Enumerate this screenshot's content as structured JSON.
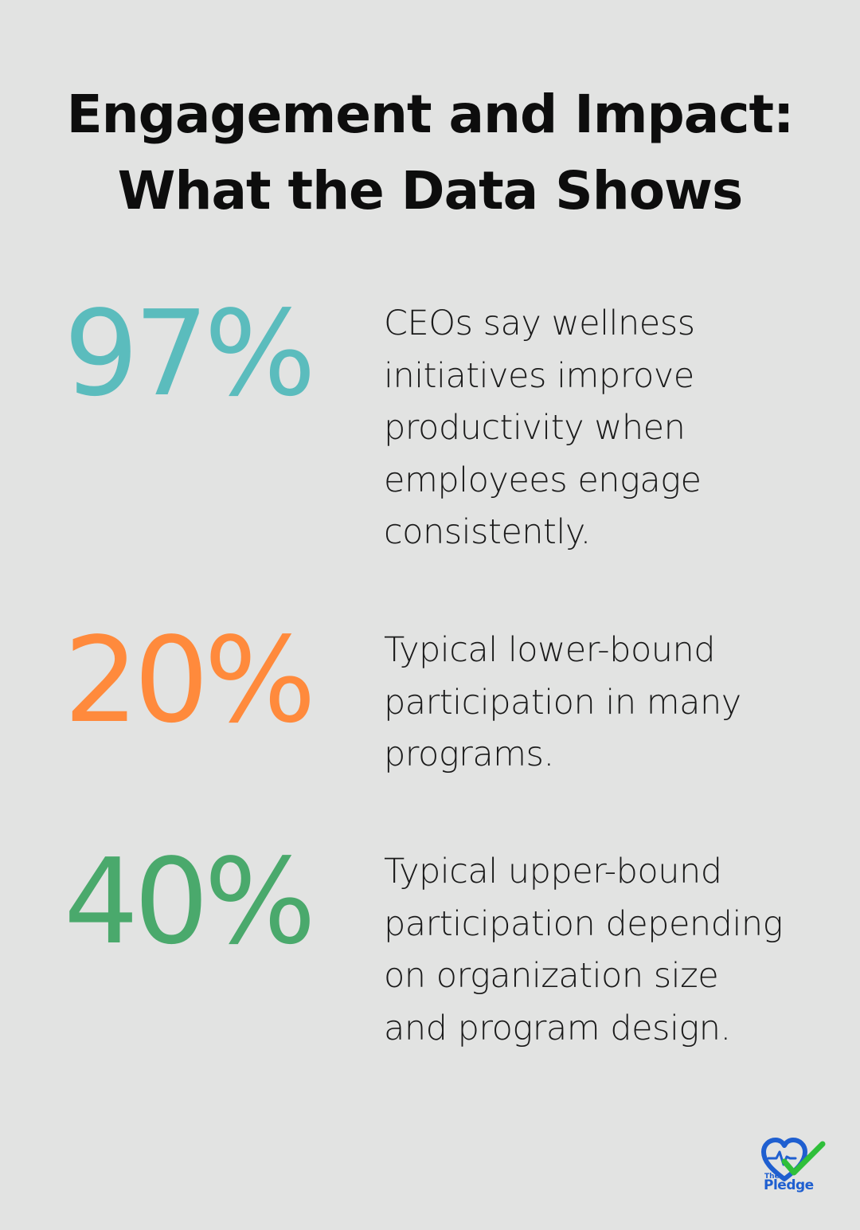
{
  "title": {
    "line1": "Engagement and Impact:",
    "line2": "What the Data Shows"
  },
  "stats": [
    {
      "value": "97%",
      "color": "#5bbcbd",
      "description_lines": [
        "CEOs say wellness",
        "initiatives improve",
        "productivity when",
        "employees engage",
        "consistently."
      ]
    },
    {
      "value": "20%",
      "color": "#ff8a3c",
      "description_lines": [
        "Typical lower-bound",
        "participation in many",
        "programs."
      ]
    },
    {
      "value": "40%",
      "color": "#4aa96c",
      "description_lines": [
        "Typical upper-bound",
        "participation depending",
        "on organization size",
        "and program design."
      ]
    }
  ],
  "logo": {
    "small_text": "The",
    "main_text": "Pledge",
    "icon": "heart-check-icon",
    "heart_color": "#1f5fd0",
    "check_color": "#2fbf3a"
  }
}
